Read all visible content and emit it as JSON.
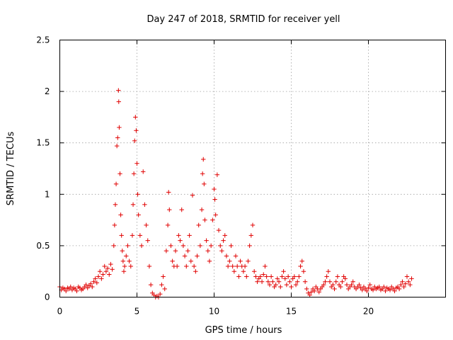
{
  "chart_data": {
    "type": "scatter",
    "title": "Day 247 of 2018, SRMTID for receiver yell",
    "xlabel": "GPS time / hours",
    "ylabel": "SRMTID / TECUs",
    "xlim": [
      0,
      25
    ],
    "ylim": [
      0,
      2.5
    ],
    "xticks": [
      0,
      5,
      10,
      15,
      20
    ],
    "xtick_labels": [
      "0",
      "5",
      "10",
      "15",
      "20"
    ],
    "yticks": [
      0,
      0.5,
      1,
      1.5,
      2,
      2.5
    ],
    "ytick_labels": [
      "0",
      "0.5",
      "1",
      "1.5",
      "2",
      "2.5"
    ],
    "grid": true,
    "marker": "+",
    "color": "#e00000",
    "series": [
      {
        "name": "SRMTID",
        "points": [
          [
            0.0,
            0.1
          ],
          [
            0.1,
            0.07
          ],
          [
            0.2,
            0.09
          ],
          [
            0.3,
            0.08
          ],
          [
            0.4,
            0.06
          ],
          [
            0.5,
            0.09
          ],
          [
            0.6,
            0.08
          ],
          [
            0.7,
            0.1
          ],
          [
            0.8,
            0.07
          ],
          [
            0.9,
            0.09
          ],
          [
            1.0,
            0.08
          ],
          [
            1.1,
            0.06
          ],
          [
            1.2,
            0.1
          ],
          [
            1.3,
            0.09
          ],
          [
            1.4,
            0.07
          ],
          [
            1.5,
            0.08
          ],
          [
            1.6,
            0.1
          ],
          [
            1.7,
            0.12
          ],
          [
            1.8,
            0.09
          ],
          [
            1.9,
            0.11
          ],
          [
            2.0,
            0.13
          ],
          [
            2.1,
            0.1
          ],
          [
            2.2,
            0.15
          ],
          [
            2.3,
            0.18
          ],
          [
            2.4,
            0.14
          ],
          [
            2.5,
            0.2
          ],
          [
            2.6,
            0.25
          ],
          [
            2.7,
            0.18
          ],
          [
            2.8,
            0.22
          ],
          [
            2.9,
            0.3
          ],
          [
            3.0,
            0.25
          ],
          [
            3.1,
            0.28
          ],
          [
            3.2,
            0.22
          ],
          [
            3.3,
            0.32
          ],
          [
            3.4,
            0.27
          ],
          [
            3.5,
            0.5
          ],
          [
            3.55,
            0.7
          ],
          [
            3.6,
            0.9
          ],
          [
            3.65,
            1.1
          ],
          [
            3.7,
            1.47
          ],
          [
            3.75,
            1.55
          ],
          [
            3.8,
            2.01
          ],
          [
            3.82,
            1.9
          ],
          [
            3.85,
            1.65
          ],
          [
            3.9,
            1.2
          ],
          [
            3.95,
            0.8
          ],
          [
            4.0,
            0.6
          ],
          [
            4.05,
            0.45
          ],
          [
            4.1,
            0.35
          ],
          [
            4.15,
            0.25
          ],
          [
            4.2,
            0.3
          ],
          [
            4.3,
            0.4
          ],
          [
            4.4,
            0.5
          ],
          [
            4.5,
            0.35
          ],
          [
            4.6,
            0.3
          ],
          [
            4.7,
            0.6
          ],
          [
            4.75,
            0.9
          ],
          [
            4.8,
            1.2
          ],
          [
            4.85,
            1.52
          ],
          [
            4.9,
            1.75
          ],
          [
            4.95,
            1.62
          ],
          [
            5.0,
            1.3
          ],
          [
            5.05,
            1.0
          ],
          [
            5.1,
            0.8
          ],
          [
            5.2,
            0.6
          ],
          [
            5.3,
            0.5
          ],
          [
            5.4,
            1.22
          ],
          [
            5.5,
            0.9
          ],
          [
            5.6,
            0.7
          ],
          [
            5.7,
            0.55
          ],
          [
            5.8,
            0.3
          ],
          [
            5.9,
            0.12
          ],
          [
            6.0,
            0.04
          ],
          [
            6.1,
            0.02
          ],
          [
            6.2,
            0.0
          ],
          [
            6.3,
            0.01
          ],
          [
            6.4,
            0.0
          ],
          [
            6.5,
            0.03
          ],
          [
            6.6,
            0.12
          ],
          [
            6.7,
            0.2
          ],
          [
            6.8,
            0.08
          ],
          [
            6.9,
            0.45
          ],
          [
            7.0,
            0.7
          ],
          [
            7.05,
            1.02
          ],
          [
            7.1,
            0.85
          ],
          [
            7.2,
            0.5
          ],
          [
            7.3,
            0.35
          ],
          [
            7.4,
            0.3
          ],
          [
            7.5,
            0.45
          ],
          [
            7.6,
            0.3
          ],
          [
            7.7,
            0.6
          ],
          [
            7.8,
            0.55
          ],
          [
            7.9,
            0.85
          ],
          [
            8.0,
            0.5
          ],
          [
            8.1,
            0.4
          ],
          [
            8.2,
            0.3
          ],
          [
            8.3,
            0.45
          ],
          [
            8.4,
            0.6
          ],
          [
            8.5,
            0.35
          ],
          [
            8.6,
            0.99
          ],
          [
            8.7,
            0.3
          ],
          [
            8.8,
            0.25
          ],
          [
            8.9,
            0.4
          ],
          [
            9.0,
            0.7
          ],
          [
            9.1,
            0.5
          ],
          [
            9.2,
            0.85
          ],
          [
            9.25,
            1.2
          ],
          [
            9.3,
            1.34
          ],
          [
            9.35,
            1.1
          ],
          [
            9.4,
            0.75
          ],
          [
            9.5,
            0.55
          ],
          [
            9.6,
            0.45
          ],
          [
            9.7,
            0.35
          ],
          [
            9.8,
            0.5
          ],
          [
            9.9,
            0.75
          ],
          [
            10.0,
            1.05
          ],
          [
            10.05,
            0.95
          ],
          [
            10.1,
            0.8
          ],
          [
            10.2,
            1.19
          ],
          [
            10.3,
            0.65
          ],
          [
            10.4,
            0.5
          ],
          [
            10.5,
            0.45
          ],
          [
            10.6,
            0.55
          ],
          [
            10.7,
            0.6
          ],
          [
            10.8,
            0.4
          ],
          [
            10.9,
            0.3
          ],
          [
            11.0,
            0.35
          ],
          [
            11.1,
            0.5
          ],
          [
            11.2,
            0.3
          ],
          [
            11.3,
            0.25
          ],
          [
            11.4,
            0.4
          ],
          [
            11.5,
            0.3
          ],
          [
            11.6,
            0.2
          ],
          [
            11.7,
            0.35
          ],
          [
            11.8,
            0.3
          ],
          [
            11.9,
            0.25
          ],
          [
            12.0,
            0.3
          ],
          [
            12.1,
            0.2
          ],
          [
            12.2,
            0.35
          ],
          [
            12.3,
            0.5
          ],
          [
            12.4,
            0.6
          ],
          [
            12.5,
            0.7
          ],
          [
            12.6,
            0.25
          ],
          [
            12.7,
            0.2
          ],
          [
            12.8,
            0.15
          ],
          [
            12.9,
            0.18
          ],
          [
            13.0,
            0.2
          ],
          [
            13.1,
            0.15
          ],
          [
            13.2,
            0.22
          ],
          [
            13.3,
            0.3
          ],
          [
            13.4,
            0.2
          ],
          [
            13.5,
            0.15
          ],
          [
            13.6,
            0.12
          ],
          [
            13.7,
            0.2
          ],
          [
            13.8,
            0.15
          ],
          [
            13.9,
            0.1
          ],
          [
            14.0,
            0.12
          ],
          [
            14.1,
            0.18
          ],
          [
            14.2,
            0.15
          ],
          [
            14.3,
            0.1
          ],
          [
            14.4,
            0.2
          ],
          [
            14.5,
            0.25
          ],
          [
            14.6,
            0.18
          ],
          [
            14.7,
            0.12
          ],
          [
            14.8,
            0.2
          ],
          [
            14.9,
            0.15
          ],
          [
            15.0,
            0.1
          ],
          [
            15.1,
            0.18
          ],
          [
            15.2,
            0.2
          ],
          [
            15.3,
            0.12
          ],
          [
            15.4,
            0.15
          ],
          [
            15.5,
            0.2
          ],
          [
            15.6,
            0.3
          ],
          [
            15.7,
            0.35
          ],
          [
            15.8,
            0.25
          ],
          [
            15.9,
            0.15
          ],
          [
            16.0,
            0.08
          ],
          [
            16.1,
            0.04
          ],
          [
            16.2,
            0.02
          ],
          [
            16.3,
            0.05
          ],
          [
            16.4,
            0.08
          ],
          [
            16.5,
            0.06
          ],
          [
            16.6,
            0.1
          ],
          [
            16.7,
            0.08
          ],
          [
            16.8,
            0.05
          ],
          [
            16.9,
            0.08
          ],
          [
            17.0,
            0.1
          ],
          [
            17.1,
            0.12
          ],
          [
            17.2,
            0.15
          ],
          [
            17.3,
            0.2
          ],
          [
            17.4,
            0.25
          ],
          [
            17.5,
            0.15
          ],
          [
            17.6,
            0.1
          ],
          [
            17.7,
            0.12
          ],
          [
            17.8,
            0.08
          ],
          [
            17.9,
            0.15
          ],
          [
            18.0,
            0.2
          ],
          [
            18.1,
            0.12
          ],
          [
            18.2,
            0.1
          ],
          [
            18.3,
            0.15
          ],
          [
            18.4,
            0.2
          ],
          [
            18.5,
            0.18
          ],
          [
            18.6,
            0.12
          ],
          [
            18.7,
            0.08
          ],
          [
            18.8,
            0.1
          ],
          [
            18.9,
            0.12
          ],
          [
            19.0,
            0.15
          ],
          [
            19.1,
            0.1
          ],
          [
            19.2,
            0.08
          ],
          [
            19.3,
            0.1
          ],
          [
            19.4,
            0.12
          ],
          [
            19.5,
            0.09
          ],
          [
            19.6,
            0.07
          ],
          [
            19.7,
            0.1
          ],
          [
            19.8,
            0.08
          ],
          [
            19.9,
            0.06
          ],
          [
            20.0,
            0.09
          ],
          [
            20.1,
            0.12
          ],
          [
            20.2,
            0.08
          ],
          [
            20.3,
            0.07
          ],
          [
            20.4,
            0.1
          ],
          [
            20.5,
            0.08
          ],
          [
            20.6,
            0.09
          ],
          [
            20.7,
            0.1
          ],
          [
            20.8,
            0.07
          ],
          [
            20.9,
            0.08
          ],
          [
            21.0,
            0.1
          ],
          [
            21.1,
            0.06
          ],
          [
            21.2,
            0.09
          ],
          [
            21.3,
            0.08
          ],
          [
            21.4,
            0.07
          ],
          [
            21.5,
            0.1
          ],
          [
            21.6,
            0.08
          ],
          [
            21.7,
            0.06
          ],
          [
            21.8,
            0.09
          ],
          [
            21.9,
            0.1
          ],
          [
            22.0,
            0.08
          ],
          [
            22.1,
            0.12
          ],
          [
            22.2,
            0.15
          ],
          [
            22.3,
            0.1
          ],
          [
            22.4,
            0.13
          ],
          [
            22.5,
            0.2
          ],
          [
            22.6,
            0.15
          ],
          [
            22.7,
            0.12
          ],
          [
            22.8,
            0.18
          ]
        ]
      }
    ]
  }
}
